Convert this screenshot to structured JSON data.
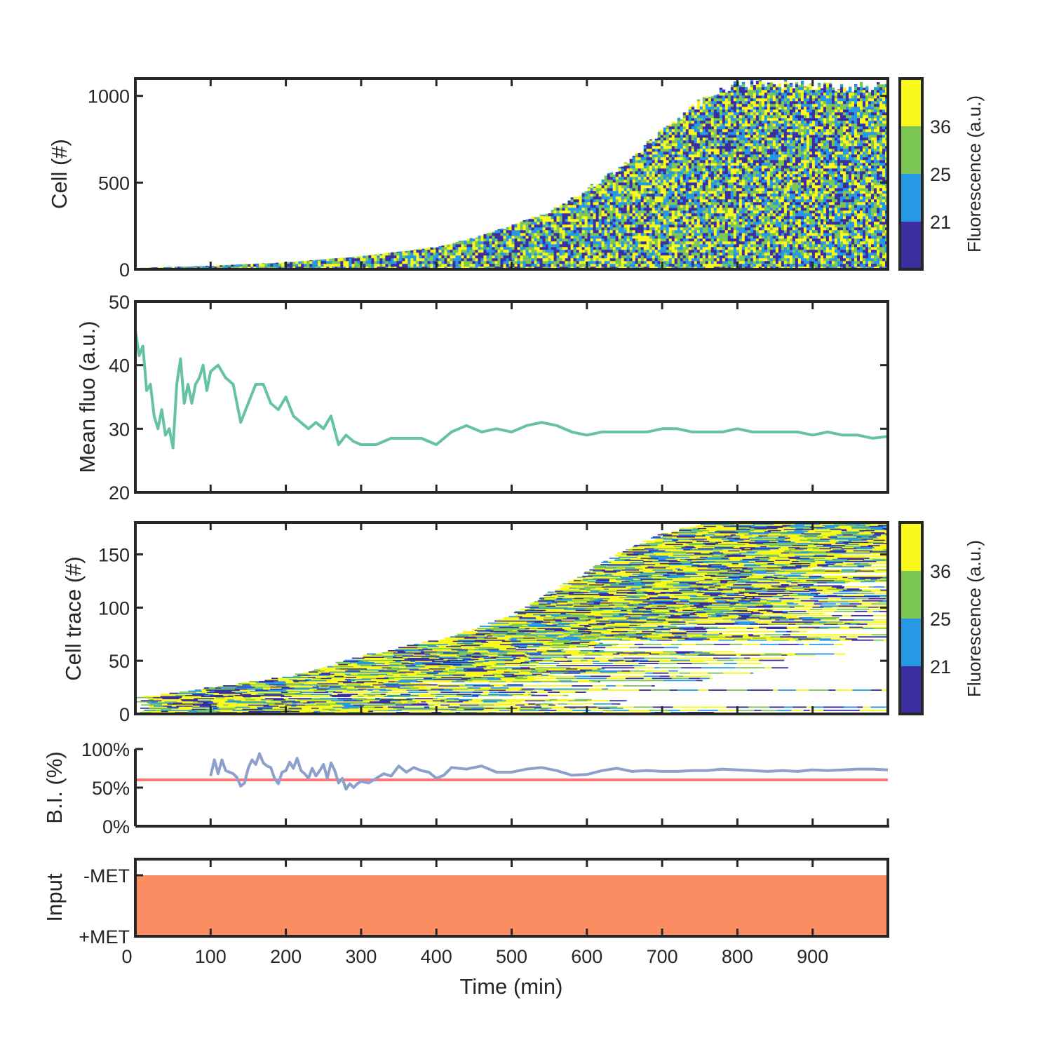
{
  "figure": {
    "xlabel": "Time (min)",
    "x_ticks": [
      0,
      100,
      200,
      300,
      400,
      500,
      600,
      700,
      800,
      900
    ],
    "xlim": [
      0,
      1000
    ]
  },
  "colors": {
    "axis": "#262626",
    "fluo_bins": [
      "#3a2ea0",
      "#2798e6",
      "#7cc656",
      "#f9f91c"
    ],
    "mean_line": "#66c2a5",
    "bi_line": "#8da0cb",
    "threshold": "#ff7777",
    "input_fill": "#fc8d62"
  },
  "colorbars": {
    "label": "Fluorescence (a.u.)",
    "ticks": [
      21,
      25,
      36
    ]
  },
  "chart_data": [
    {
      "id": "cell-heatmap",
      "type": "heatmap",
      "ylabel": "Cell (#)",
      "xlim": [
        0,
        1000
      ],
      "ylim": [
        0,
        1100
      ],
      "y_ticks": [
        0,
        500,
        1000
      ],
      "description_values": {
        "cell_count_envelope": {
          "x": [
            0,
            100,
            200,
            300,
            400,
            450,
            500,
            550,
            600,
            650,
            700,
            750,
            800,
            850,
            900,
            1000
          ],
          "y": [
            8,
            20,
            40,
            75,
            130,
            180,
            250,
            330,
            460,
            600,
            800,
            960,
            1070,
            1075,
            1060,
            1050
          ]
        },
        "color_bins_upper_edges": [
          21,
          25,
          36,
          45
        ]
      }
    },
    {
      "id": "mean-fluo",
      "type": "line",
      "ylabel": "Mean fluo (a.u.)",
      "xlim": [
        0,
        1000
      ],
      "ylim": [
        20,
        50
      ],
      "y_ticks": [
        20,
        30,
        40,
        50
      ],
      "x": [
        0,
        5,
        10,
        15,
        20,
        25,
        30,
        35,
        40,
        45,
        50,
        55,
        60,
        65,
        70,
        75,
        80,
        85,
        90,
        95,
        100,
        110,
        120,
        130,
        140,
        150,
        160,
        170,
        180,
        190,
        200,
        210,
        220,
        230,
        240,
        250,
        260,
        270,
        280,
        290,
        300,
        320,
        340,
        360,
        380,
        400,
        420,
        440,
        460,
        480,
        500,
        520,
        540,
        560,
        580,
        600,
        620,
        640,
        660,
        680,
        700,
        720,
        740,
        760,
        780,
        800,
        820,
        840,
        860,
        880,
        900,
        920,
        940,
        960,
        980,
        1000
      ],
      "y": [
        45.5,
        41.5,
        43,
        36,
        37,
        32,
        30,
        33,
        29,
        30,
        27,
        37,
        41,
        34,
        37,
        34,
        37,
        38,
        40,
        36,
        39,
        40,
        38,
        37,
        31,
        34,
        37,
        37,
        34,
        33,
        35,
        32,
        31,
        30,
        31,
        30,
        32,
        27.5,
        29,
        28,
        27.5,
        27.5,
        28.5,
        28.5,
        28.5,
        27.5,
        29.5,
        30.5,
        29.5,
        30,
        29.5,
        30.5,
        31,
        30.5,
        29.5,
        29,
        29.5,
        29.5,
        29.5,
        29.5,
        30,
        30,
        29.5,
        29.5,
        29.5,
        30,
        29.5,
        29.5,
        29.5,
        29.5,
        29,
        29.5,
        29,
        29,
        28.5,
        28.8
      ]
    },
    {
      "id": "cell-trace-heatmap",
      "type": "heatmap",
      "ylabel": "Cell trace (#)",
      "xlim": [
        0,
        1000
      ],
      "ylim": [
        0,
        180
      ],
      "y_ticks": [
        0,
        50,
        100,
        150
      ],
      "description_values": {
        "trace_start_envelope": {
          "x": [
            0,
            100,
            200,
            300,
            400,
            450,
            500,
            550,
            600,
            650,
            700,
            750,
            1000
          ],
          "y": [
            15,
            25,
            35,
            55,
            70,
            80,
            95,
            115,
            135,
            155,
            170,
            180,
            180
          ]
        },
        "color_bins_upper_edges": [
          21,
          25,
          36,
          45
        ]
      }
    },
    {
      "id": "bi",
      "type": "line",
      "ylabel": "B.I. (%)",
      "xlim": [
        0,
        1000
      ],
      "ylim": [
        0,
        100
      ],
      "y_ticks": [
        0,
        50,
        100
      ],
      "y_tick_labels": [
        "0%",
        "50%",
        "100%"
      ],
      "threshold": 60,
      "x": [
        100,
        105,
        110,
        115,
        120,
        125,
        130,
        135,
        140,
        145,
        150,
        155,
        160,
        165,
        170,
        175,
        180,
        185,
        190,
        195,
        200,
        205,
        210,
        215,
        220,
        225,
        230,
        235,
        240,
        245,
        250,
        255,
        260,
        265,
        270,
        275,
        280,
        285,
        290,
        295,
        300,
        310,
        320,
        330,
        340,
        350,
        360,
        370,
        380,
        390,
        400,
        410,
        420,
        440,
        460,
        480,
        500,
        520,
        540,
        560,
        580,
        600,
        620,
        640,
        660,
        680,
        700,
        720,
        740,
        760,
        780,
        800,
        820,
        840,
        860,
        880,
        900,
        920,
        940,
        960,
        980,
        1000
      ],
      "y": [
        65,
        86,
        68,
        86,
        72,
        70,
        68,
        63,
        52,
        56,
        75,
        86,
        80,
        94,
        82,
        78,
        76,
        62,
        55,
        70,
        72,
        83,
        75,
        88,
        72,
        68,
        62,
        75,
        65,
        72,
        80,
        62,
        82,
        72,
        56,
        62,
        48,
        55,
        50,
        55,
        58,
        56,
        62,
        68,
        65,
        78,
        70,
        76,
        72,
        70,
        62,
        66,
        76,
        74,
        78,
        70,
        70,
        74,
        76,
        72,
        66,
        67,
        72,
        75,
        71,
        72,
        71,
        71,
        72,
        72,
        74,
        73,
        72,
        71,
        72,
        71,
        73,
        72,
        73,
        74,
        74,
        73
      ]
    },
    {
      "id": "input",
      "type": "area",
      "ylabel": "Input",
      "xlim": [
        0,
        1000
      ],
      "y_tick_labels": [
        "-MET",
        "+MET"
      ],
      "x": [
        0,
        1000
      ],
      "y": [
        1,
        1
      ],
      "state": "-MET"
    }
  ]
}
